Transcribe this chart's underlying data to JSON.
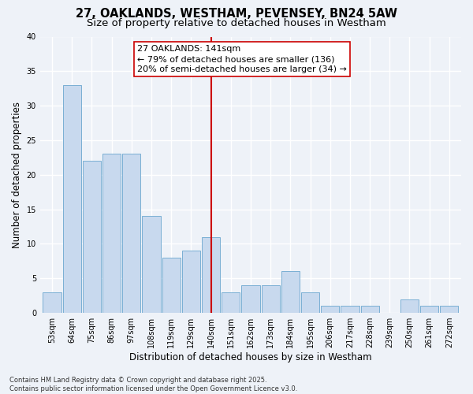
{
  "title1": "27, OAKLANDS, WESTHAM, PEVENSEY, BN24 5AW",
  "title2": "Size of property relative to detached houses in Westham",
  "xlabel": "Distribution of detached houses by size in Westham",
  "ylabel": "Number of detached properties",
  "categories": [
    "53sqm",
    "64sqm",
    "75sqm",
    "86sqm",
    "97sqm",
    "108sqm",
    "119sqm",
    "129sqm",
    "140sqm",
    "151sqm",
    "162sqm",
    "173sqm",
    "184sqm",
    "195sqm",
    "206sqm",
    "217sqm",
    "228sqm",
    "239sqm",
    "250sqm",
    "261sqm",
    "272sqm"
  ],
  "values": [
    3,
    33,
    22,
    23,
    23,
    14,
    8,
    9,
    11,
    3,
    4,
    4,
    6,
    3,
    1,
    1,
    1,
    0,
    2,
    1,
    1
  ],
  "bar_color": "#c8d9ee",
  "bar_edge_color": "#7aafd4",
  "vline_x_index": 8,
  "vline_color": "#cc0000",
  "annotation_text": "27 OAKLANDS: 141sqm\n← 79% of detached houses are smaller (136)\n20% of semi-detached houses are larger (34) →",
  "annotation_box_color": "#ffffff",
  "annotation_box_edge_color": "#cc0000",
  "ylim": [
    0,
    40
  ],
  "yticks": [
    0,
    5,
    10,
    15,
    20,
    25,
    30,
    35,
    40
  ],
  "background_color": "#eef2f8",
  "grid_color": "#ffffff",
  "footer_text": "Contains HM Land Registry data © Crown copyright and database right 2025.\nContains public sector information licensed under the Open Government Licence v3.0.",
  "title_fontsize": 10.5,
  "subtitle_fontsize": 9.5,
  "tick_fontsize": 7,
  "label_fontsize": 8.5,
  "annotation_fontsize": 8,
  "footer_fontsize": 6
}
